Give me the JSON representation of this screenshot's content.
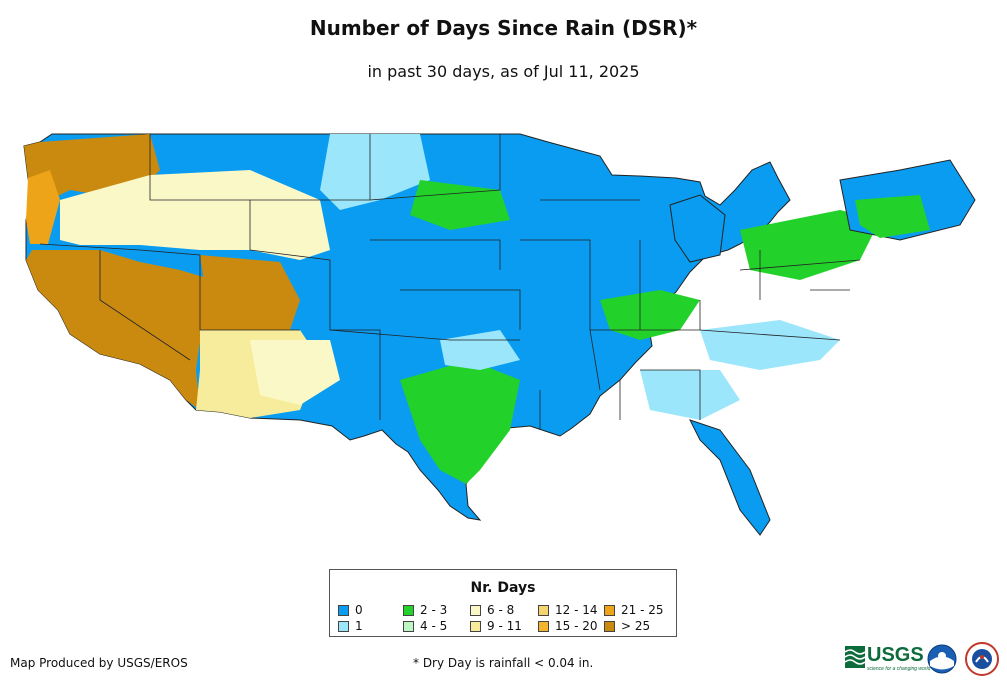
{
  "title": "Number of Days Since Rain (DSR)*",
  "subtitle": "in past 30 days, as of Jul 11, 2025",
  "legend": {
    "title": "Nr. Days",
    "items": [
      {
        "label": "0",
        "color": "#0a9cf0"
      },
      {
        "label": "1",
        "color": "#9be6fb"
      },
      {
        "label": "2 - 3",
        "color": "#22d22a"
      },
      {
        "label": "4 - 5",
        "color": "#bdf5c3"
      },
      {
        "label": "6 - 8",
        "color": "#fbf8c8"
      },
      {
        "label": "9 - 11",
        "color": "#f6ec9b"
      },
      {
        "label": "12 - 14",
        "color": "#f5d36f"
      },
      {
        "label": "15 - 20",
        "color": "#f2b52d"
      },
      {
        "label": "21 - 25",
        "color": "#eea419"
      },
      {
        "label": "> 25",
        "color": "#c98a0f"
      }
    ]
  },
  "footer": {
    "credit": "Map Produced by USGS/EROS",
    "note": "* Dry Day is rainfall < 0.04 in."
  },
  "logos": {
    "usgs": "USGS",
    "usgs_tagline": "science for a changing world",
    "noaa": "noaa-logo",
    "nws": "nws-logo"
  }
}
